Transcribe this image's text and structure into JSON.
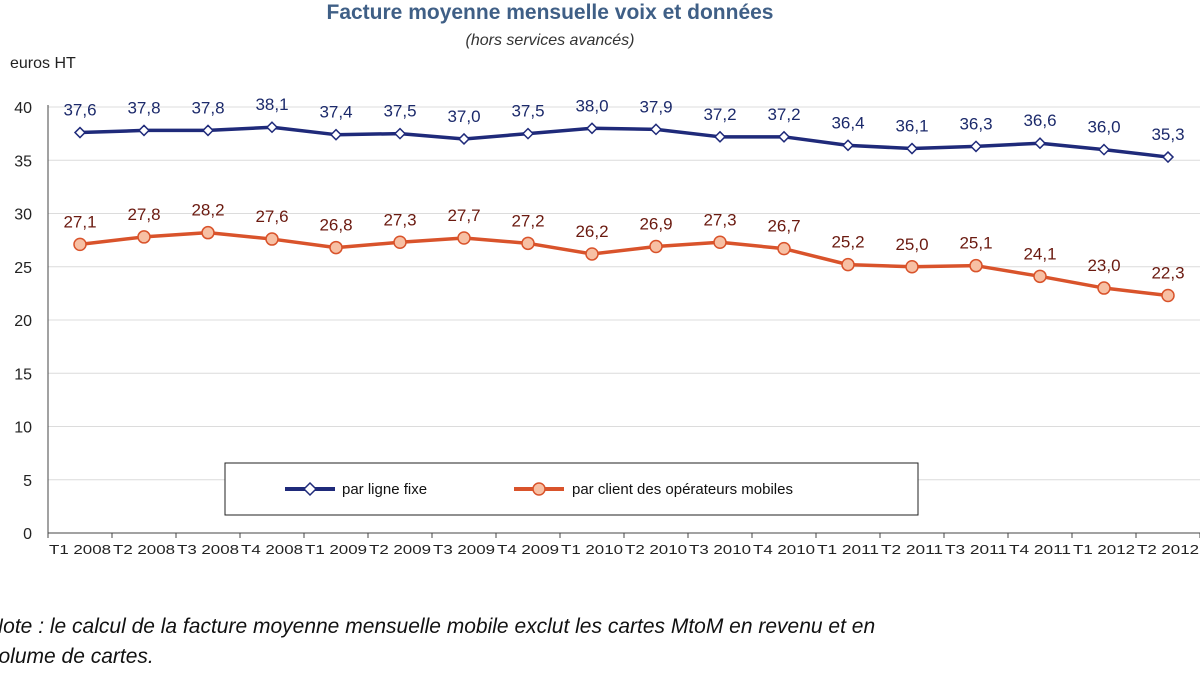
{
  "chart_data": {
    "type": "line",
    "title": "Facture moyenne mensuelle voix et données",
    "subtitle": "(hors services avancés)",
    "ylabel": "euros HT",
    "ylim": [
      0,
      40
    ],
    "yticks": [
      "0",
      "5",
      "10",
      "15",
      "20",
      "25",
      "30",
      "35",
      "40"
    ],
    "categories": [
      "T1 2008",
      "T2 2008",
      "T3 2008",
      "T4 2008",
      "T1 2009",
      "T2 2009",
      "T3 2009",
      "T4 2009",
      "T1 2010",
      "T2 2010",
      "T3 2010",
      "T4 2010",
      "T1 2011",
      "T2 2011",
      "T3 2011",
      "T4 2011",
      "T1 2012",
      "T2 2012"
    ],
    "grid": true,
    "legend_position": "bottom-center inside plot",
    "series": [
      {
        "name": "par ligne fixe",
        "color": "#1f2a7a",
        "marker": "diamond",
        "values": [
          37.6,
          37.8,
          37.8,
          38.1,
          37.4,
          37.5,
          37.0,
          37.5,
          38.0,
          37.9,
          37.2,
          37.2,
          36.4,
          36.1,
          36.3,
          36.6,
          36.0,
          35.3
        ],
        "labels": [
          "37,6",
          "37,8",
          "37,8",
          "38,1",
          "37,4",
          "37,5",
          "37,0",
          "37,5",
          "38,0",
          "37,9",
          "37,2",
          "37,2",
          "36,4",
          "36,1",
          "36,3",
          "36,6",
          "36,0",
          "35,3"
        ]
      },
      {
        "name": "par client des opérateurs mobiles",
        "color": "#d9532b",
        "marker": "circle",
        "values": [
          27.1,
          27.8,
          28.2,
          27.6,
          26.8,
          27.3,
          27.7,
          27.2,
          26.2,
          26.9,
          27.3,
          26.7,
          25.2,
          25.0,
          25.1,
          24.1,
          23.0,
          22.3
        ],
        "labels": [
          "27,1",
          "27,8",
          "28,2",
          "27,6",
          "26,8",
          "27,3",
          "27,7",
          "27,2",
          "26,2",
          "26,9",
          "27,3",
          "26,7",
          "25,2",
          "25,0",
          "25,1",
          "24,1",
          "23,0",
          "22,3"
        ]
      }
    ]
  },
  "note": {
    "line1": "Note : le calcul de la facture moyenne mensuelle mobile exclut les cartes MtoM en revenu et en",
    "line2": "volume de cartes."
  }
}
